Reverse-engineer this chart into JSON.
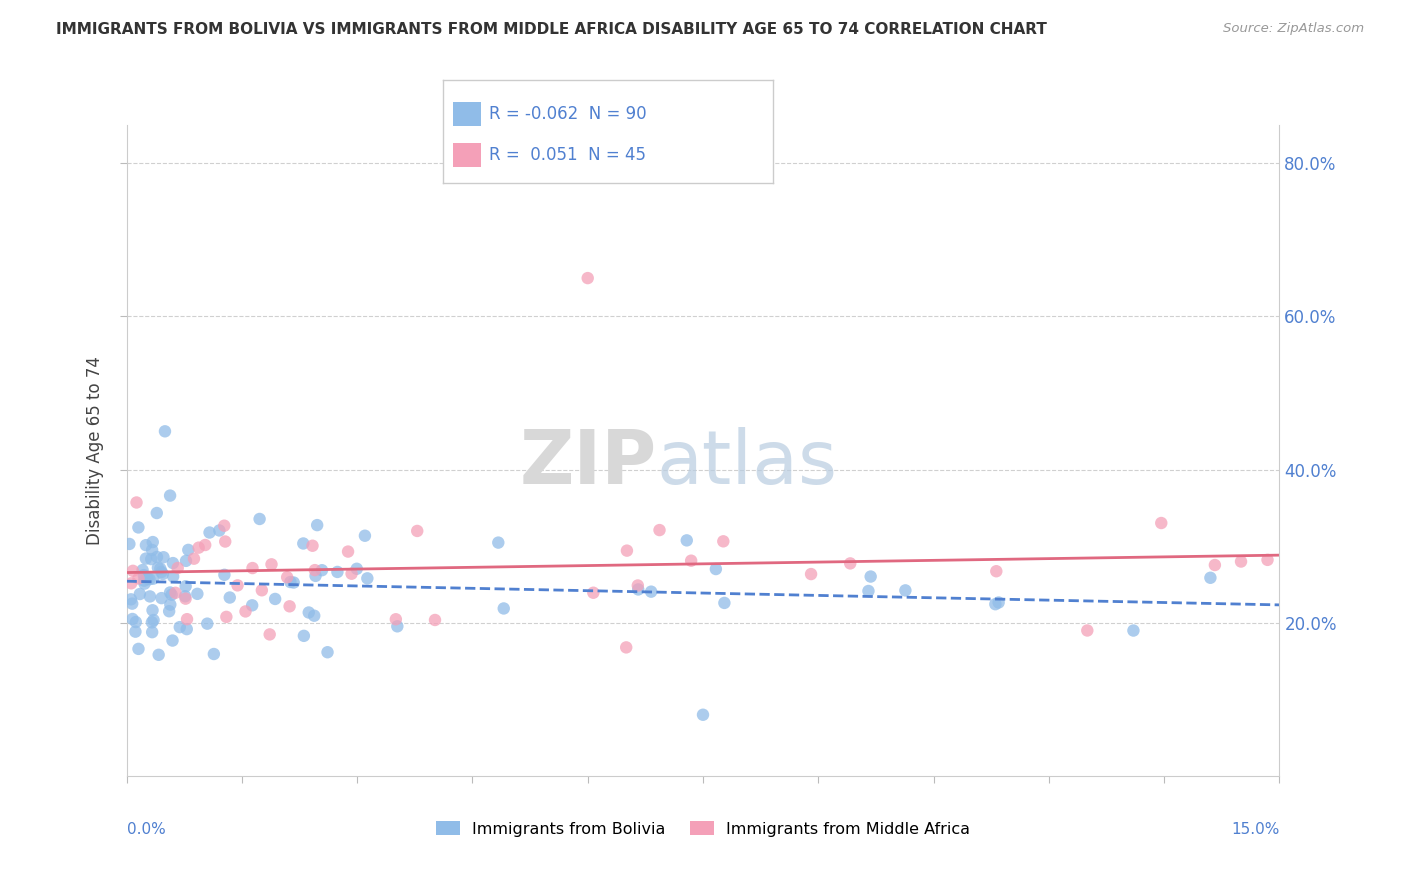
{
  "title": "IMMIGRANTS FROM BOLIVIA VS IMMIGRANTS FROM MIDDLE AFRICA DISABILITY AGE 65 TO 74 CORRELATION CHART",
  "source": "Source: ZipAtlas.com",
  "ylabel": "Disability Age 65 to 74",
  "xlim": [
    0.0,
    15.0
  ],
  "ylim": [
    0.0,
    85.0
  ],
  "yticks_right": [
    20.0,
    40.0,
    60.0,
    80.0
  ],
  "bolivia_R": -0.062,
  "bolivia_N": 90,
  "africa_R": 0.051,
  "africa_N": 45,
  "bolivia_color": "#90bce8",
  "africa_color": "#f4a0b8",
  "bolivia_line_color": "#5080d0",
  "africa_line_color": "#e06880",
  "legend_text_color": "#5080d0",
  "title_color": "#333333",
  "source_color": "#999999",
  "axis_label_color": "#5080d0",
  "grid_color": "#d0d0d0",
  "watermark_zip_color": "#d8d8d8",
  "watermark_atlas_color": "#b8cce0"
}
